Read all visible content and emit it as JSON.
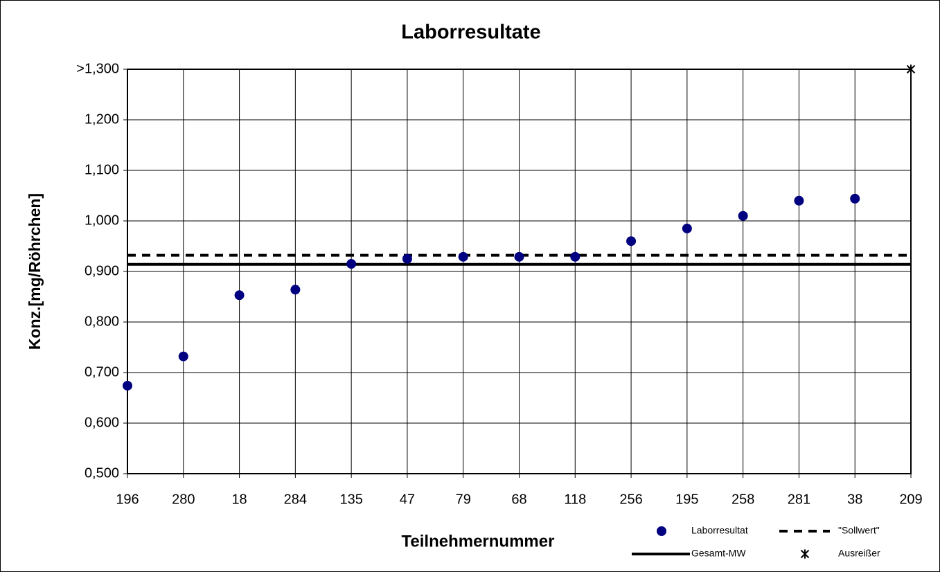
{
  "chart_data": {
    "type": "scatter",
    "title": "Laborresultate",
    "x_label": "Teilnehmernummer",
    "y_label": "Konz.[mg/Röhrchen]",
    "categories": [
      "196",
      "280",
      "18",
      "284",
      "135",
      "47",
      "79",
      "68",
      "118",
      "256",
      "195",
      "258",
      "281",
      "38",
      "209"
    ],
    "series": [
      {
        "name": "Laborresultat",
        "color": "#000080",
        "marker": "circle",
        "values": [
          0.674,
          0.732,
          0.853,
          0.864,
          0.915,
          0.925,
          0.929,
          0.929,
          0.929,
          0.96,
          0.985,
          1.01,
          1.04,
          1.044,
          null
        ]
      },
      {
        "name": "Ausreißer",
        "color": "#000000",
        "marker": "star",
        "values": [
          null,
          null,
          null,
          null,
          null,
          null,
          null,
          null,
          null,
          null,
          null,
          null,
          null,
          null,
          1.3
        ]
      }
    ],
    "hlines": [
      {
        "name": "\"Sollwert\"",
        "value": 0.932,
        "style": "dashed",
        "color": "#000000"
      },
      {
        "name": "Gesamt-MW",
        "value": 0.914,
        "style": "solid",
        "color": "#000000"
      }
    ],
    "ylim": [
      0.5,
      1.3
    ],
    "yticks": [
      {
        "value": 0.5,
        "label": "0,500"
      },
      {
        "value": 0.6,
        "label": "0,600"
      },
      {
        "value": 0.7,
        "label": "0,700"
      },
      {
        "value": 0.8,
        "label": "0,800"
      },
      {
        "value": 0.9,
        "label": "0,900"
      },
      {
        "value": 1.0,
        "label": "1,000"
      },
      {
        "value": 1.1,
        "label": "1,100"
      },
      {
        "value": 1.2,
        "label": "1,200"
      },
      {
        "value": 1.3,
        "label": ">1,300"
      }
    ],
    "grid": true,
    "legend": "bottom-right"
  }
}
